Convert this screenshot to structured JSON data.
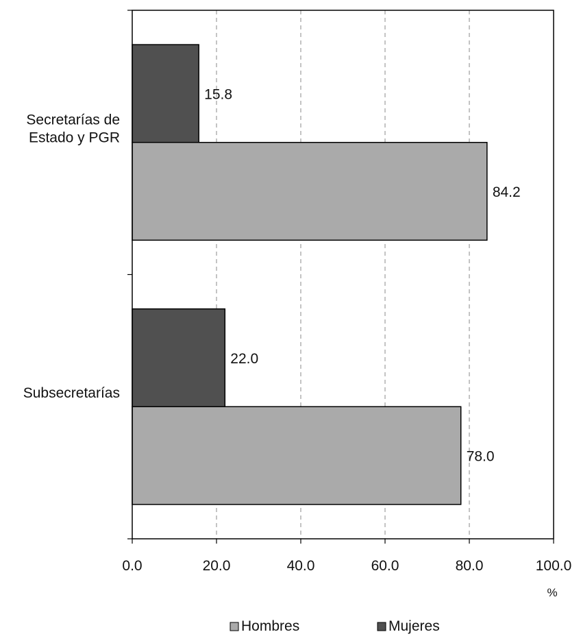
{
  "chart_data": {
    "type": "bar",
    "orientation": "horizontal",
    "categories": [
      "Secretarías de\nEstado y PGR",
      "Subsecretarías"
    ],
    "series": [
      {
        "name": "Mujeres",
        "values": [
          15.8,
          22.0
        ],
        "labels": [
          "15.8",
          "22.0"
        ],
        "color": "#505050"
      },
      {
        "name": "Hombres",
        "values": [
          84.2,
          78.0
        ],
        "labels": [
          "84.2",
          "78.0"
        ],
        "color": "#aaaaaa"
      }
    ],
    "xlim": [
      0,
      100
    ],
    "xticks": [
      0,
      20,
      40,
      60,
      80,
      100
    ],
    "xtick_labels": [
      "0.0",
      "20.0",
      "40.0",
      "60.0",
      "80.0",
      "100.0"
    ],
    "xunit": "%",
    "grid": "vertical-dashed",
    "legend": {
      "placement": "bottom",
      "entries": [
        {
          "name": "Hombres",
          "color": "#aaaaaa"
        },
        {
          "name": "Mujeres",
          "color": "#505050"
        }
      ]
    }
  }
}
